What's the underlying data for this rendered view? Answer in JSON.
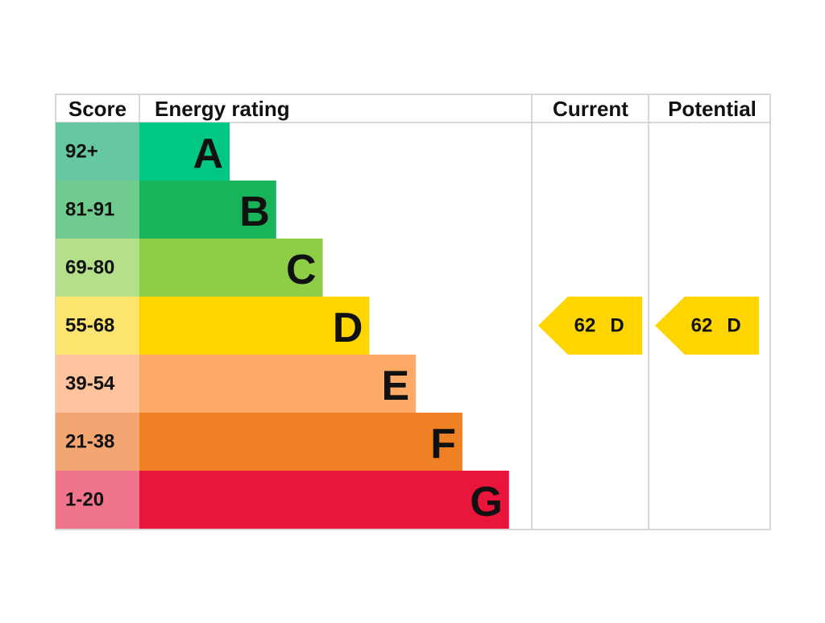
{
  "header": {
    "score": "Score",
    "rating": "Energy rating",
    "current": "Current",
    "potential": "Potential"
  },
  "rows": [
    {
      "score": "92+",
      "band": "A",
      "score_color": "#66c8a1",
      "color": "#00c781"
    },
    {
      "score": "81-91",
      "band": "B",
      "score_color": "#70cc8e",
      "color": "#19b459"
    },
    {
      "score": "69-80",
      "band": "C",
      "score_color": "#b4e08a",
      "color": "#8dce46"
    },
    {
      "score": "55-68",
      "band": "D",
      "score_color": "#fde46e",
      "color": "#ffd500"
    },
    {
      "score": "39-54",
      "band": "E",
      "score_color": "#fdc39c",
      "color": "#fcaa65"
    },
    {
      "score": "21-38",
      "band": "F",
      "score_color": "#f4a672",
      "color": "#ef8023"
    },
    {
      "score": "1-20",
      "band": "G",
      "score_color": "#f0748c",
      "color": "#e9153b"
    }
  ],
  "current": {
    "value": 62,
    "band": "D"
  },
  "potential": {
    "value": 62,
    "band": "D"
  }
}
